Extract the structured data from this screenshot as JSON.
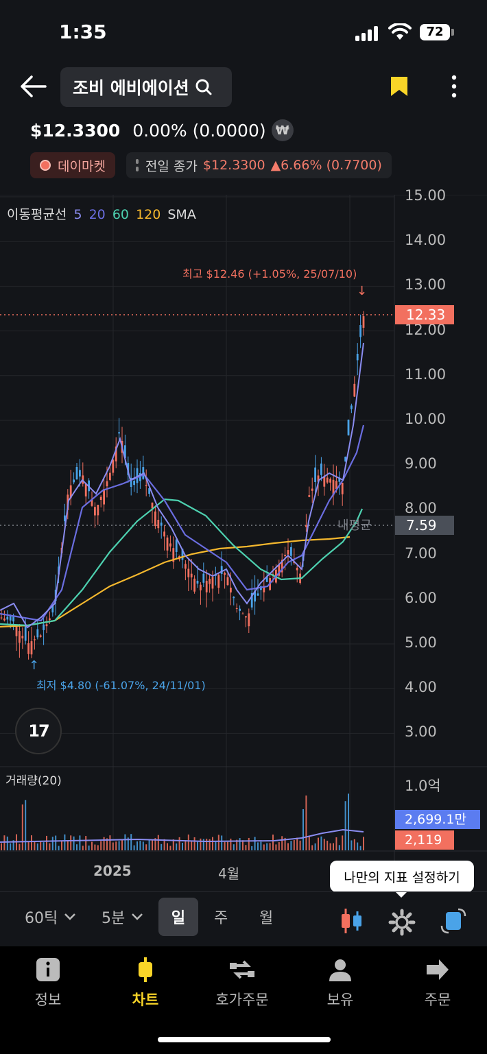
{
  "status_bar": {
    "time": "1:35",
    "battery": "72"
  },
  "header": {
    "stock_name": "조비 에비에이션"
  },
  "quote": {
    "price": "$12.3300",
    "change": "0.00% (0.0000)",
    "currency_icon": "₩",
    "market_label": "데이마켓",
    "prev_close_label": "전일 종가",
    "prev_close_value": "$12.3300",
    "prev_close_change": "▲6.66% (0.7700)"
  },
  "chart": {
    "legend": {
      "prefix": "이동평균선",
      "p5": "5",
      "p20": "20",
      "p60": "60",
      "p120": "120",
      "suffix": "SMA"
    },
    "y_ticks": [
      "15.00",
      "14.00",
      "13.00",
      "12.00",
      "11.00",
      "10.00",
      "9.00",
      "8.00",
      "7.00",
      "6.00",
      "5.00",
      "4.00",
      "3.00"
    ],
    "current_price_tag": "12.33",
    "avg_price_tag": "7.59",
    "avg_label": "내평균",
    "high_annotation": "최고 $12.46 (+1.05%, 25/07/10)",
    "high_arrow": "↓",
    "low_annotation": "최저 $4.80 (-61.07%, 24/11/01)",
    "low_arrow": "↑",
    "x_labels": [
      "2025",
      "4월"
    ],
    "volume": {
      "title": "거래량(20)",
      "max_tick": "1.0억",
      "ma_tag": "2,699.1만",
      "current_tag": "2,119"
    },
    "tv_logo": "17",
    "colors": {
      "up": "#f2705f",
      "down": "#4aa3e8",
      "ma5": "#8a8cf0",
      "ma20": "#6a6de0",
      "ma60": "#4dd1b0",
      "ma120": "#f5b82e"
    }
  },
  "chart_data": {
    "type": "candlestick",
    "y_range": [
      2.5,
      15.0
    ],
    "high": 12.46,
    "low": 4.8,
    "last": 12.33,
    "avg_cost": 7.59
  },
  "tooltip": "나만의 지표 설정하기",
  "toolbar": {
    "tick": "60틱",
    "minute": "5분",
    "day": "일",
    "week": "주",
    "month": "월"
  },
  "nav": [
    {
      "label": "정보",
      "icon": "info-icon"
    },
    {
      "label": "차트",
      "icon": "chart-icon"
    },
    {
      "label": "호가주문",
      "icon": "order-book-icon"
    },
    {
      "label": "보유",
      "icon": "holdings-icon"
    },
    {
      "label": "주문",
      "icon": "order-icon"
    }
  ]
}
